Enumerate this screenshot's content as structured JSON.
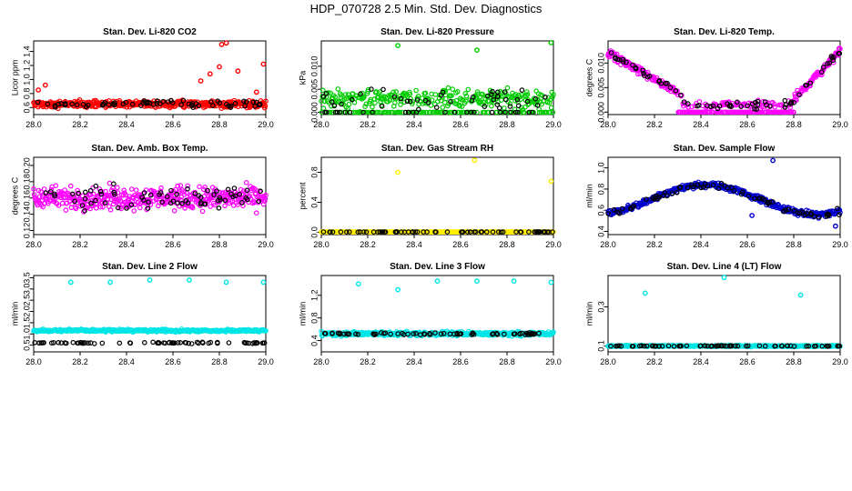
{
  "page": {
    "title": "HDP_070728  2.5 Min. Std. Dev. Diagnostics"
  },
  "chart_data": [
    {
      "type": "scatter",
      "title": "Stan. Dev. Li-820 CO2",
      "ylabel": "Licor ppm",
      "color": "#ff0000",
      "xlim": [
        28.0,
        29.0
      ],
      "ylim": [
        0.5,
        1.55
      ],
      "xticks": [
        "28.0",
        "28.2",
        "28.4",
        "28.6",
        "28.8",
        "29.0"
      ],
      "yticks": [
        0.6,
        0.8,
        1.0,
        1.2,
        1.4
      ],
      "ytick_labels": [
        "0.6",
        "0.8",
        "1.0",
        "1.2",
        "1.4"
      ],
      "base": 0.65,
      "noise": 0.07,
      "outliers": [
        [
          28.72,
          0.98
        ],
        [
          28.76,
          1.08
        ],
        [
          28.8,
          1.18
        ],
        [
          28.81,
          1.5
        ],
        [
          28.83,
          1.52
        ],
        [
          28.88,
          1.12
        ],
        [
          28.99,
          1.22
        ],
        [
          28.96,
          0.82
        ],
        [
          28.02,
          0.85
        ],
        [
          28.05,
          0.92
        ]
      ]
    },
    {
      "type": "scatter",
      "title": "Stan. Dev. Li-820 Pressure",
      "ylabel": "kPa",
      "color": "#00cc00",
      "xlim": [
        28.0,
        29.0
      ],
      "ylim": [
        -0.0005,
        0.0155
      ],
      "xticks": [
        "28.0",
        "28.2",
        "28.4",
        "28.6",
        "28.8",
        "29.0"
      ],
      "yticks": [
        0.0,
        0.005,
        0.01
      ],
      "ytick_labels": [
        "0.000",
        "0.005",
        "0.010"
      ],
      "base": 0.003,
      "noise": 0.003,
      "outliers": [
        [
          28.33,
          0.0145
        ],
        [
          28.67,
          0.0135
        ],
        [
          28.99,
          0.0151
        ]
      ]
    },
    {
      "type": "scatter",
      "title": "Stan. Dev. Li-820 Temp.",
      "ylabel": "degrees C",
      "color": "#ff00ff",
      "xlim": [
        28.0,
        29.0
      ],
      "ylim": [
        -0.0005,
        0.0145
      ],
      "xticks": [
        "28.0",
        "28.2",
        "28.4",
        "28.6",
        "28.8",
        "29.0"
      ],
      "yticks": [
        0.0,
        0.005,
        0.01
      ],
      "ytick_labels": [
        "0.000",
        "0.005",
        "0.010"
      ],
      "base": "vshape",
      "noise": 0.0012,
      "outliers": []
    },
    {
      "type": "scatter",
      "title": "Stan. Dev. Amb. Box Temp.",
      "ylabel": "degrees C",
      "color": "#ff00ff",
      "xlim": [
        28.0,
        29.0
      ],
      "ylim": [
        0.115,
        0.21
      ],
      "xticks": [
        "28.0",
        "28.2",
        "28.4",
        "28.6",
        "28.8",
        "29.0"
      ],
      "yticks": [
        0.12,
        0.14,
        0.16,
        0.18,
        0.2
      ],
      "ytick_labels": [
        "0.12",
        "0.14",
        "0.16",
        "0.18",
        "0.20"
      ],
      "base": 0.16,
      "noise": 0.02,
      "outliers": []
    },
    {
      "type": "scatter",
      "title": "Stan. Dev. Gas Stream RH",
      "ylabel": "percent",
      "color": "#ffee00",
      "xlim": [
        28.0,
        29.0
      ],
      "ylim": [
        -0.03,
        1.0
      ],
      "xticks": [
        "28.0",
        "28.2",
        "28.4",
        "28.6",
        "28.8",
        "29.0"
      ],
      "yticks": [
        0.0,
        0.4,
        0.8
      ],
      "ytick_labels": [
        "0.0",
        "0.4",
        "0.8"
      ],
      "base": 0.005,
      "noise": 0.002,
      "outliers": [
        [
          28.33,
          0.8
        ],
        [
          28.66,
          0.96
        ],
        [
          28.99,
          0.68
        ]
      ]
    },
    {
      "type": "scatter",
      "title": "Stan. Dev. Sample Flow",
      "ylabel": "ml/min",
      "color": "#0000cc",
      "xlim": [
        28.0,
        29.0
      ],
      "ylim": [
        0.37,
        1.1
      ],
      "xticks": [
        "28.0",
        "28.2",
        "28.4",
        "28.6",
        "28.8",
        "29.0"
      ],
      "yticks": [
        0.4,
        0.6,
        0.8,
        1.0
      ],
      "ytick_labels": [
        "0.4",
        "0.6",
        "0.8",
        "1.0"
      ],
      "base": "wave",
      "noise": 0.04,
      "outliers": [
        [
          28.71,
          1.07
        ],
        [
          28.62,
          0.55
        ],
        [
          28.98,
          0.45
        ]
      ]
    },
    {
      "type": "scatter",
      "title": "Stan. Dev. Line 2 Flow",
      "ylabel": "ml/min",
      "color": "#00e5e5",
      "xlim": [
        28.0,
        29.0
      ],
      "ylim": [
        0.2,
        3.6
      ],
      "xticks": [
        "28.0",
        "28.2",
        "28.4",
        "28.6",
        "28.8",
        "29.0"
      ],
      "yticks": [
        0.5,
        1.0,
        1.5,
        2.0,
        2.5,
        3.0,
        3.5
      ],
      "ytick_labels": [
        "0.5",
        "1.0",
        "1.5",
        "2.0",
        "2.5",
        "3.0",
        "3.5"
      ],
      "base": 1.15,
      "noise": 0.08,
      "outliers": [
        [
          28.16,
          3.3
        ],
        [
          28.33,
          3.3
        ],
        [
          28.5,
          3.4
        ],
        [
          28.67,
          3.4
        ],
        [
          28.83,
          3.3
        ],
        [
          28.99,
          3.3
        ]
      ],
      "black_base": 0.6
    },
    {
      "type": "scatter",
      "title": "Stan. Dev. Line 3 Flow",
      "ylabel": "ml/min",
      "color": "#00e5e5",
      "xlim": [
        28.0,
        29.0
      ],
      "ylim": [
        0.2,
        1.55
      ],
      "xticks": [
        "28.0",
        "28.2",
        "28.4",
        "28.6",
        "28.8",
        "29.0"
      ],
      "yticks": [
        0.4,
        0.8,
        1.2
      ],
      "ytick_labels": [
        "0.4",
        "0.8",
        "1.2"
      ],
      "base": 0.52,
      "noise": 0.05,
      "outliers": [
        [
          28.16,
          1.4
        ],
        [
          28.33,
          1.3
        ],
        [
          28.5,
          1.45
        ],
        [
          28.67,
          1.45
        ],
        [
          28.83,
          1.45
        ],
        [
          28.99,
          1.43
        ]
      ],
      "black_base": 0.52
    },
    {
      "type": "scatter",
      "title": "Stan. Dev. Line 4 (LT) Flow",
      "ylabel": "ml/min",
      "color": "#00e5e5",
      "xlim": [
        28.0,
        29.0
      ],
      "ylim": [
        0.07,
        0.46
      ],
      "xticks": [
        "28.0",
        "28.2",
        "28.4",
        "28.6",
        "28.8",
        "29.0"
      ],
      "yticks": [
        0.1,
        0.3
      ],
      "ytick_labels": [
        "0.1",
        "0.3"
      ],
      "base": 0.1,
      "noise": 0.005,
      "outliers": [
        [
          28.16,
          0.37
        ],
        [
          28.5,
          0.45
        ],
        [
          28.83,
          0.36
        ]
      ],
      "black_base": 0.1
    }
  ]
}
